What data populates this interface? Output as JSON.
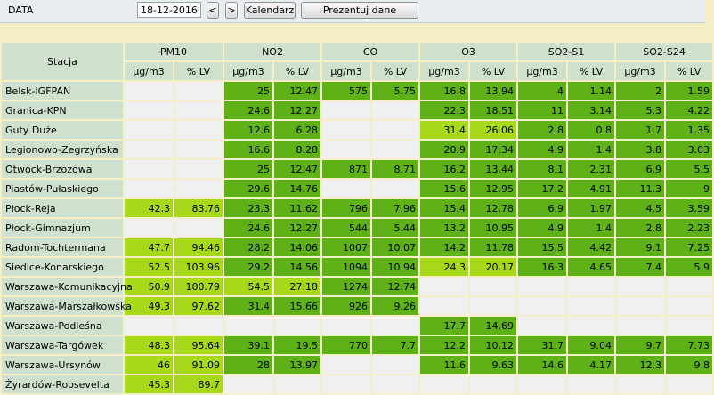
{
  "toolbar": {
    "date_label": "DATA",
    "date_value": "18-12-2016",
    "prev_label": "<",
    "next_label": ">",
    "calendar_label": "Kalendarz",
    "present_label": "Prezentuj dane"
  },
  "table": {
    "station_header": "Stacja",
    "pollutants": [
      "PM10",
      "NO2",
      "CO",
      "O3",
      "SO2-S1",
      "SO2-S24"
    ],
    "unit_labels": [
      "µg/m3",
      "% LV"
    ],
    "colors": {
      "good": "#5eb217",
      "moderate": "#a8d81a",
      "empty": "#f0f0f0",
      "header": "#cfe0cd"
    },
    "rows": [
      {
        "station": "Belsk-IGFPAN",
        "cells": [
          [
            "",
            ""
          ],
          [
            "25",
            "12.47"
          ],
          [
            "575",
            "5.75"
          ],
          [
            "16.8",
            "13.94"
          ],
          [
            "4",
            "1.14"
          ],
          [
            "2",
            "1.59"
          ]
        ],
        "levels": [
          "e",
          "g",
          "g",
          "g",
          "g",
          "g"
        ]
      },
      {
        "station": "Granica-KPN",
        "cells": [
          [
            "",
            ""
          ],
          [
            "24.6",
            "12.27"
          ],
          [
            "",
            ""
          ],
          [
            "22.3",
            "18.51"
          ],
          [
            "11",
            "3.14"
          ],
          [
            "5.3",
            "4.22"
          ]
        ],
        "levels": [
          "e",
          "g",
          "e",
          "g",
          "g",
          "g"
        ]
      },
      {
        "station": "Guty Duże",
        "cells": [
          [
            "",
            ""
          ],
          [
            "12.6",
            "6.28"
          ],
          [
            "",
            ""
          ],
          [
            "31.4",
            "26.06"
          ],
          [
            "2.8",
            "0.8"
          ],
          [
            "1.7",
            "1.35"
          ]
        ],
        "levels": [
          "e",
          "g",
          "e",
          "l",
          "g",
          "g"
        ]
      },
      {
        "station": "Legionowo-Zegrzyńska",
        "cells": [
          [
            "",
            ""
          ],
          [
            "16.6",
            "8.28"
          ],
          [
            "",
            ""
          ],
          [
            "20.9",
            "17.34"
          ],
          [
            "4.9",
            "1.4"
          ],
          [
            "3.8",
            "3.03"
          ]
        ],
        "levels": [
          "e",
          "g",
          "e",
          "g",
          "g",
          "g"
        ]
      },
      {
        "station": "Otwock-Brzozowa",
        "cells": [
          [
            "",
            ""
          ],
          [
            "25",
            "12.47"
          ],
          [
            "871",
            "8.71"
          ],
          [
            "16.2",
            "13.44"
          ],
          [
            "8.1",
            "2.31"
          ],
          [
            "6.9",
            "5.5"
          ]
        ],
        "levels": [
          "e",
          "g",
          "g",
          "g",
          "g",
          "g"
        ]
      },
      {
        "station": "Piastów-Pułaskiego",
        "cells": [
          [
            "",
            ""
          ],
          [
            "29.6",
            "14.76"
          ],
          [
            "",
            ""
          ],
          [
            "15.6",
            "12.95"
          ],
          [
            "17.2",
            "4.91"
          ],
          [
            "11.3",
            "9"
          ]
        ],
        "levels": [
          "e",
          "g",
          "e",
          "g",
          "g",
          "g"
        ]
      },
      {
        "station": "Płock-Reja",
        "cells": [
          [
            "42.3",
            "83.76"
          ],
          [
            "23.3",
            "11.62"
          ],
          [
            "796",
            "7.96"
          ],
          [
            "15.4",
            "12.78"
          ],
          [
            "6.9",
            "1.97"
          ],
          [
            "4.5",
            "3.59"
          ]
        ],
        "levels": [
          "l",
          "g",
          "g",
          "g",
          "g",
          "g"
        ]
      },
      {
        "station": "Płock-Gimnazjum",
        "cells": [
          [
            "",
            ""
          ],
          [
            "24.6",
            "12.27"
          ],
          [
            "544",
            "5.44"
          ],
          [
            "13.2",
            "10.95"
          ],
          [
            "4.9",
            "1.4"
          ],
          [
            "2.8",
            "2.23"
          ]
        ],
        "levels": [
          "e",
          "g",
          "g",
          "g",
          "g",
          "g"
        ]
      },
      {
        "station": "Radom-Tochtermana",
        "cells": [
          [
            "47.7",
            "94.46"
          ],
          [
            "28.2",
            "14.06"
          ],
          [
            "1007",
            "10.07"
          ],
          [
            "14.2",
            "11.78"
          ],
          [
            "15.5",
            "4.42"
          ],
          [
            "9.1",
            "7.25"
          ]
        ],
        "levels": [
          "l",
          "g",
          "g",
          "g",
          "g",
          "g"
        ]
      },
      {
        "station": "Siedlce-Konarskiego",
        "cells": [
          [
            "52.5",
            "103.96"
          ],
          [
            "29.2",
            "14.56"
          ],
          [
            "1094",
            "10.94"
          ],
          [
            "24.3",
            "20.17"
          ],
          [
            "16.3",
            "4.65"
          ],
          [
            "7.4",
            "5.9"
          ]
        ],
        "levels": [
          "l",
          "g",
          "g",
          "l",
          "g",
          "g"
        ]
      },
      {
        "station": "Warszawa-Komunikacyjna",
        "cells": [
          [
            "50.9",
            "100.79"
          ],
          [
            "54.5",
            "27.18"
          ],
          [
            "1274",
            "12.74"
          ],
          [
            "",
            ""
          ],
          [
            "",
            ""
          ],
          [
            "",
            ""
          ]
        ],
        "levels": [
          "l",
          "l",
          "g",
          "e",
          "e",
          "e"
        ]
      },
      {
        "station": "Warszawa-Marszałkowska",
        "cells": [
          [
            "49.3",
            "97.62"
          ],
          [
            "31.4",
            "15.66"
          ],
          [
            "926",
            "9.26"
          ],
          [
            "",
            ""
          ],
          [
            "",
            ""
          ],
          [
            "",
            ""
          ]
        ],
        "levels": [
          "l",
          "g",
          "g",
          "e",
          "e",
          "e"
        ]
      },
      {
        "station": "Warszawa-Podleśna",
        "cells": [
          [
            "",
            ""
          ],
          [
            "",
            ""
          ],
          [
            "",
            ""
          ],
          [
            "17.7",
            "14.69"
          ],
          [
            "",
            ""
          ],
          [
            "",
            ""
          ]
        ],
        "levels": [
          "e",
          "e",
          "e",
          "g",
          "e",
          "e"
        ]
      },
      {
        "station": "Warszawa-Targówek",
        "cells": [
          [
            "48.3",
            "95.64"
          ],
          [
            "39.1",
            "19.5"
          ],
          [
            "770",
            "7.7"
          ],
          [
            "12.2",
            "10.12"
          ],
          [
            "31.7",
            "9.04"
          ],
          [
            "9.7",
            "7.73"
          ]
        ],
        "levels": [
          "l",
          "g",
          "g",
          "g",
          "g",
          "g"
        ]
      },
      {
        "station": "Warszawa-Ursynów",
        "cells": [
          [
            "46",
            "91.09"
          ],
          [
            "28",
            "13.97"
          ],
          [
            "",
            ""
          ],
          [
            "11.6",
            "9.63"
          ],
          [
            "14.6",
            "4.17"
          ],
          [
            "12.3",
            "9.8"
          ]
        ],
        "levels": [
          "l",
          "g",
          "e",
          "g",
          "g",
          "g"
        ]
      },
      {
        "station": "Żyrardów-Roosevelta",
        "cells": [
          [
            "45.3",
            "89.7"
          ],
          [
            "",
            ""
          ],
          [
            "",
            ""
          ],
          [
            "",
            ""
          ],
          [
            "",
            ""
          ],
          [
            "",
            ""
          ]
        ],
        "levels": [
          "l",
          "e",
          "e",
          "e",
          "e",
          "e"
        ]
      }
    ]
  }
}
